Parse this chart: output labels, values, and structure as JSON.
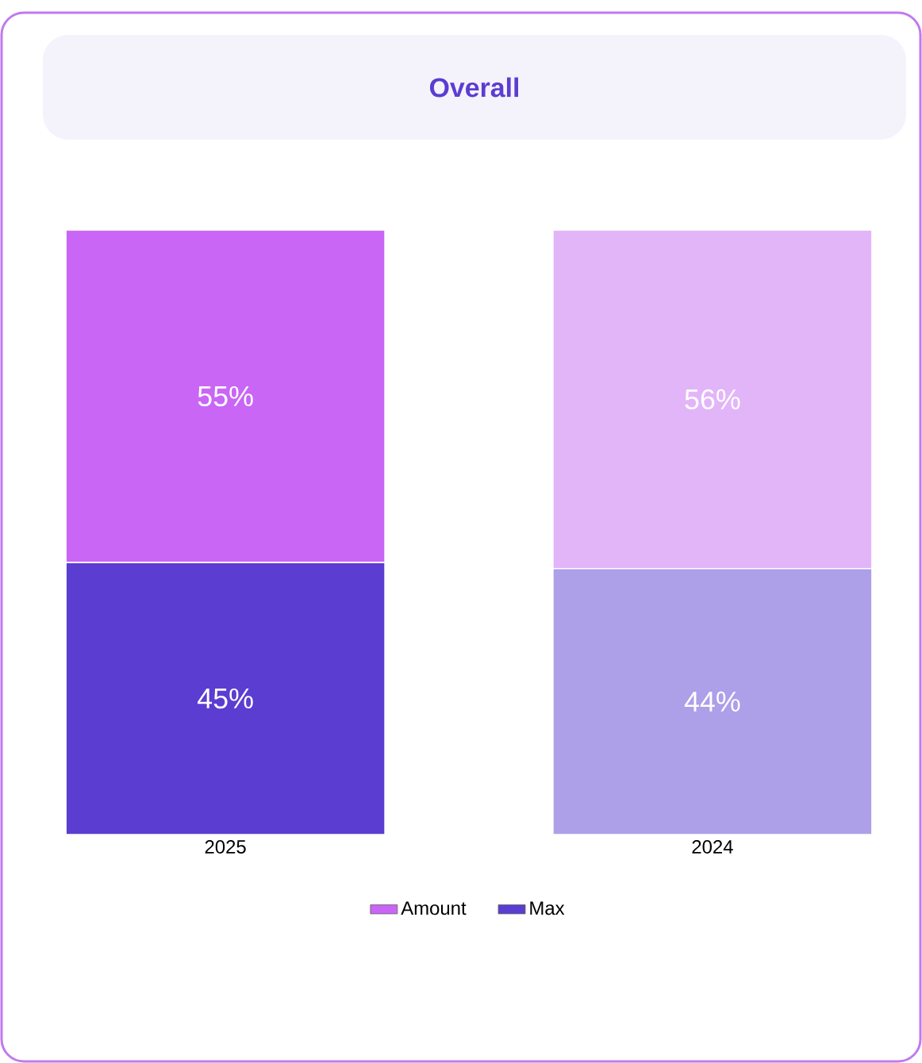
{
  "chart_data": {
    "type": "bar",
    "title": "Overall",
    "stacked": true,
    "categories": [
      "2025",
      "2024"
    ],
    "series": [
      {
        "name": "Max",
        "color": "#5b3dd1",
        "colors": [
          "#5b3dd1",
          "#ad9fe8"
        ],
        "values": [
          45,
          44
        ],
        "value_labels": [
          "45%",
          "44%"
        ]
      },
      {
        "name": "Amount",
        "color": "#c966f5",
        "colors": [
          "#c966f5",
          "#e2b5f8"
        ],
        "values": [
          55,
          56
        ],
        "value_labels": [
          "55%",
          "56%"
        ]
      }
    ],
    "ylim": [
      0,
      100
    ],
    "legend": "bottom"
  }
}
